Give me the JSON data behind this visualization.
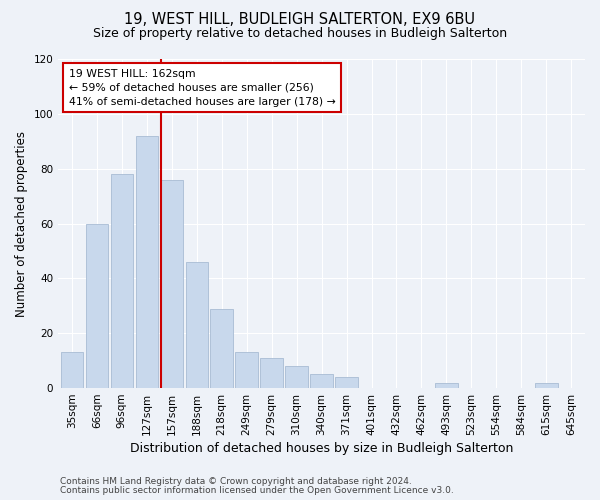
{
  "title": "19, WEST HILL, BUDLEIGH SALTERTON, EX9 6BU",
  "subtitle": "Size of property relative to detached houses in Budleigh Salterton",
  "xlabel": "Distribution of detached houses by size in Budleigh Salterton",
  "ylabel": "Number of detached properties",
  "bin_labels": [
    "35sqm",
    "66sqm",
    "96sqm",
    "127sqm",
    "157sqm",
    "188sqm",
    "218sqm",
    "249sqm",
    "279sqm",
    "310sqm",
    "340sqm",
    "371sqm",
    "401sqm",
    "432sqm",
    "462sqm",
    "493sqm",
    "523sqm",
    "554sqm",
    "584sqm",
    "615sqm",
    "645sqm"
  ],
  "bar_values": [
    13,
    60,
    78,
    92,
    76,
    46,
    29,
    13,
    11,
    8,
    5,
    4,
    0,
    0,
    0,
    2,
    0,
    0,
    0,
    2,
    0
  ],
  "bar_color": "#c8d8ec",
  "bar_edge_color": "#a8bcd4",
  "property_line_color": "#cc0000",
  "annotation_text": "19 WEST HILL: 162sqm\n← 59% of detached houses are smaller (256)\n41% of semi-detached houses are larger (178) →",
  "annotation_box_color": "#ffffff",
  "annotation_box_edge": "#cc0000",
  "ylim": [
    0,
    120
  ],
  "yticks": [
    0,
    20,
    40,
    60,
    80,
    100,
    120
  ],
  "footer_line1": "Contains HM Land Registry data © Crown copyright and database right 2024.",
  "footer_line2": "Contains public sector information licensed under the Open Government Licence v3.0.",
  "title_fontsize": 10.5,
  "subtitle_fontsize": 9,
  "xlabel_fontsize": 9,
  "ylabel_fontsize": 8.5,
  "tick_fontsize": 7.5,
  "footer_fontsize": 6.5,
  "background_color": "#eef2f8",
  "plot_bg_color": "#eef2f8",
  "grid_color": "#ffffff",
  "property_line_idx": 4
}
